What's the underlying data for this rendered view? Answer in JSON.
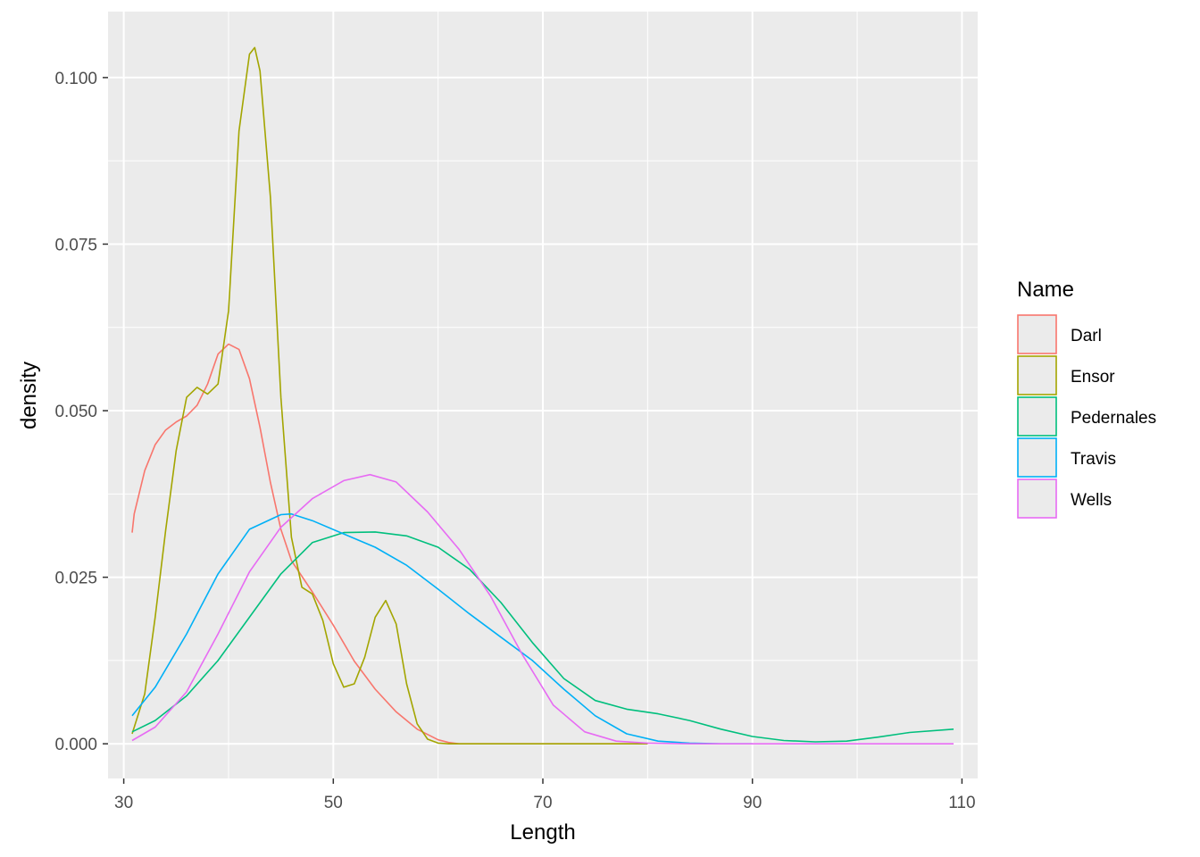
{
  "chart_data": {
    "type": "line",
    "title": "",
    "xlabel": "Length",
    "ylabel": "density",
    "xlim": [
      28.5,
      111.5
    ],
    "ylim": [
      -0.0052,
      0.1099
    ],
    "x_ticks": [
      30,
      50,
      70,
      90,
      110
    ],
    "x_tick_labels": [
      "30",
      "50",
      "70",
      "90",
      "110"
    ],
    "y_ticks": [
      0.0,
      0.025,
      0.05,
      0.075,
      0.1
    ],
    "y_tick_labels": [
      "0.000",
      "0.025",
      "0.050",
      "0.075",
      "0.100"
    ],
    "grid": true,
    "panel_background": "#ebebeb",
    "legend": {
      "title": "Name",
      "position": "right"
    },
    "series": [
      {
        "name": "Darl",
        "color": "#F8766D",
        "x": [
          30.8,
          31,
          32,
          33,
          34,
          35,
          36,
          37,
          38,
          39,
          40,
          41,
          42,
          43,
          44,
          45,
          46,
          48,
          50,
          52,
          54,
          56,
          58,
          60,
          61,
          62,
          65,
          70,
          75,
          80
        ],
        "y": [
          0.0317,
          0.0345,
          0.041,
          0.0449,
          0.0471,
          0.0483,
          0.0492,
          0.0508,
          0.054,
          0.0585,
          0.06,
          0.0592,
          0.0548,
          0.0475,
          0.0392,
          0.0322,
          0.0275,
          0.0228,
          0.0178,
          0.0124,
          0.0082,
          0.0048,
          0.0022,
          0.0006,
          0.0002,
          0.0,
          0.0,
          0.0,
          0.0,
          0.0
        ]
      },
      {
        "name": "Ensor",
        "color": "#A3A500",
        "x": [
          30.8,
          32,
          33,
          34,
          35,
          36,
          37,
          38,
          39,
          40,
          41,
          42,
          42.5,
          43,
          44,
          45,
          46,
          47,
          48,
          49,
          50,
          51,
          52,
          53,
          54,
          55,
          56,
          57,
          58,
          59,
          60,
          61,
          62,
          65,
          70,
          80
        ],
        "y": [
          0.0015,
          0.0075,
          0.019,
          0.032,
          0.044,
          0.052,
          0.0535,
          0.0525,
          0.054,
          0.065,
          0.092,
          0.1035,
          0.1045,
          0.101,
          0.082,
          0.052,
          0.031,
          0.0235,
          0.0225,
          0.0185,
          0.012,
          0.0085,
          0.009,
          0.013,
          0.019,
          0.0215,
          0.018,
          0.009,
          0.003,
          0.0007,
          0.0001,
          0.0,
          0.0,
          0.0,
          0.0,
          0.0
        ]
      },
      {
        "name": "Pedernales",
        "color": "#00BF7D",
        "x": [
          30.8,
          33,
          36,
          39,
          42,
          45,
          48,
          51,
          54,
          57,
          60,
          63,
          66,
          69,
          72,
          75,
          78,
          81,
          84,
          87,
          90,
          93,
          96,
          99,
          102,
          105,
          109.2
        ],
        "y": [
          0.0018,
          0.0035,
          0.0072,
          0.0125,
          0.019,
          0.0255,
          0.0302,
          0.0317,
          0.0318,
          0.0312,
          0.0295,
          0.0262,
          0.0212,
          0.0152,
          0.0098,
          0.0065,
          0.0052,
          0.0045,
          0.0035,
          0.0022,
          0.0011,
          0.0005,
          0.0003,
          0.0004,
          0.001,
          0.0017,
          0.0022
        ]
      },
      {
        "name": "Travis",
        "color": "#00B0F6",
        "x": [
          30.8,
          33,
          36,
          39,
          42,
          45,
          46,
          48,
          51,
          54,
          57,
          60,
          63,
          66,
          69,
          72,
          75,
          78,
          81,
          84,
          87,
          90
        ],
        "y": [
          0.0042,
          0.0085,
          0.0165,
          0.0255,
          0.0322,
          0.0344,
          0.0345,
          0.0335,
          0.0315,
          0.0295,
          0.0268,
          0.0232,
          0.0195,
          0.016,
          0.0125,
          0.0082,
          0.0042,
          0.0015,
          0.0004,
          0.0001,
          0.0,
          0.0
        ]
      },
      {
        "name": "Wells",
        "color": "#E76BF3",
        "x": [
          30.8,
          33,
          36,
          39,
          42,
          45,
          48,
          51,
          53.5,
          56,
          59,
          62,
          65,
          68,
          71,
          74,
          77,
          80,
          84,
          90,
          100,
          109.2
        ],
        "y": [
          0.0005,
          0.0025,
          0.0078,
          0.0165,
          0.0258,
          0.0325,
          0.0368,
          0.0395,
          0.0404,
          0.0393,
          0.0348,
          0.0292,
          0.0222,
          0.0135,
          0.0058,
          0.0018,
          0.0004,
          0.0001,
          0.0,
          0.0,
          0.0,
          0.0
        ]
      }
    ]
  }
}
